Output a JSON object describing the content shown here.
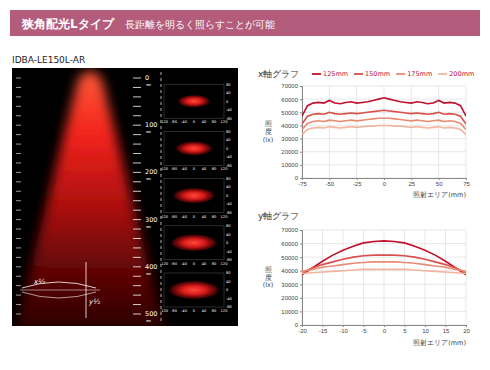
{
  "header": {
    "title": "狭角配光Lタイプ",
    "subtitle": "長距離を明るく照らすことが可能"
  },
  "model": "IDBA-LE150L-AR",
  "beam_image": {
    "distance_ticks": [
      0,
      100,
      200,
      300,
      400,
      500
    ],
    "unit": "㎜",
    "profile_xticks": [
      -120,
      -80,
      -40,
      0,
      40,
      80,
      120
    ],
    "profile_yticks": [
      80,
      40,
      0,
      -40,
      -80
    ],
    "x_half_label": "x½",
    "y_half_label": "y½"
  },
  "chart_data": [
    {
      "type": "line",
      "title": "x軸グラフ",
      "xlabel": "照射エリア(mm)",
      "ylabel": "照度(lx)",
      "x": [
        -75,
        -70,
        -65,
        -60,
        -55,
        -50,
        -45,
        -40,
        -35,
        -30,
        -25,
        -20,
        -15,
        -10,
        -5,
        0,
        5,
        10,
        15,
        20,
        25,
        30,
        35,
        40,
        45,
        50,
        55,
        60,
        65,
        70,
        75
      ],
      "series": [
        {
          "name": "125mm",
          "color": "#c0122c",
          "values": [
            47000,
            55000,
            57000,
            57500,
            57000,
            59000,
            57000,
            56500,
            57500,
            58000,
            57000,
            57500,
            58000,
            59000,
            60000,
            61000,
            60000,
            59000,
            58000,
            57500,
            57000,
            58000,
            57500,
            56500,
            57000,
            59000,
            57000,
            57500,
            57000,
            55000,
            47000
          ]
        },
        {
          "name": "150mm",
          "color": "#d9504a",
          "values": [
            41000,
            47000,
            48500,
            49000,
            48500,
            50000,
            49000,
            48500,
            49000,
            49500,
            49000,
            49500,
            50000,
            50500,
            51000,
            51500,
            51000,
            50500,
            50000,
            49500,
            49000,
            49500,
            49000,
            48500,
            49000,
            50000,
            48500,
            49000,
            48500,
            47000,
            41000
          ]
        },
        {
          "name": "175mm",
          "color": "#e98a72",
          "values": [
            37000,
            41500,
            43000,
            43500,
            43000,
            44000,
            43500,
            43000,
            43500,
            44000,
            43500,
            44000,
            44500,
            45000,
            45500,
            45500,
            45500,
            45000,
            44500,
            44000,
            43500,
            44000,
            43500,
            43000,
            43500,
            44000,
            43000,
            43500,
            43000,
            41500,
            37000
          ]
        },
        {
          "name": "200mm",
          "color": "#f2b59c",
          "values": [
            33000,
            37000,
            38000,
            38500,
            38000,
            39000,
            38500,
            38000,
            38500,
            39000,
            38500,
            39000,
            39500,
            39500,
            40000,
            40000,
            40000,
            39500,
            39500,
            39000,
            38500,
            39000,
            38500,
            38000,
            38500,
            39000,
            38000,
            38500,
            38000,
            37000,
            33000
          ]
        }
      ],
      "xlim": [
        -75,
        75
      ],
      "xticks": [
        -75,
        -50,
        -25,
        0,
        25,
        50,
        75
      ],
      "ylim": [
        0,
        70000
      ],
      "yticks": [
        0,
        10000,
        20000,
        30000,
        40000,
        50000,
        60000,
        70000
      ],
      "grid": true,
      "legend": "top"
    },
    {
      "type": "line",
      "title": "y軸グラフ",
      "xlabel": "照射エリア(mm)",
      "ylabel": "照度(lx)",
      "x": [
        -20,
        -17.5,
        -15,
        -12.5,
        -10,
        -7.5,
        -5,
        -2.5,
        0,
        2.5,
        5,
        7.5,
        10,
        12.5,
        15,
        17.5,
        20
      ],
      "series": [
        {
          "color": "#c0122c",
          "values": [
            37000,
            42000,
            47000,
            51500,
            55000,
            58000,
            60500,
            61500,
            62000,
            61500,
            60500,
            58000,
            55000,
            51500,
            47000,
            42000,
            37000
          ]
        },
        {
          "color": "#d9504a",
          "values": [
            38500,
            42000,
            44500,
            46500,
            48500,
            50000,
            51000,
            51500,
            51500,
            51500,
            51000,
            50000,
            48500,
            46500,
            44500,
            42000,
            38500
          ]
        },
        {
          "color": "#e98a72",
          "values": [
            39500,
            41000,
            42500,
            43500,
            44500,
            45500,
            46000,
            46500,
            46500,
            46500,
            46000,
            45500,
            44500,
            43500,
            42500,
            41000,
            39500
          ]
        },
        {
          "color": "#f2b59c",
          "values": [
            38000,
            38500,
            39000,
            39500,
            40000,
            40500,
            41000,
            41000,
            41000,
            41000,
            41000,
            40500,
            40000,
            39500,
            39000,
            38500,
            38000
          ]
        }
      ],
      "xlim": [
        -20,
        20
      ],
      "xticks": [
        -20,
        -15,
        -10,
        -5,
        0,
        5,
        10,
        15,
        20
      ],
      "ylim": [
        0,
        70000
      ],
      "yticks": [
        0,
        10000,
        20000,
        30000,
        40000,
        50000,
        60000,
        70000
      ],
      "grid": true
    }
  ]
}
